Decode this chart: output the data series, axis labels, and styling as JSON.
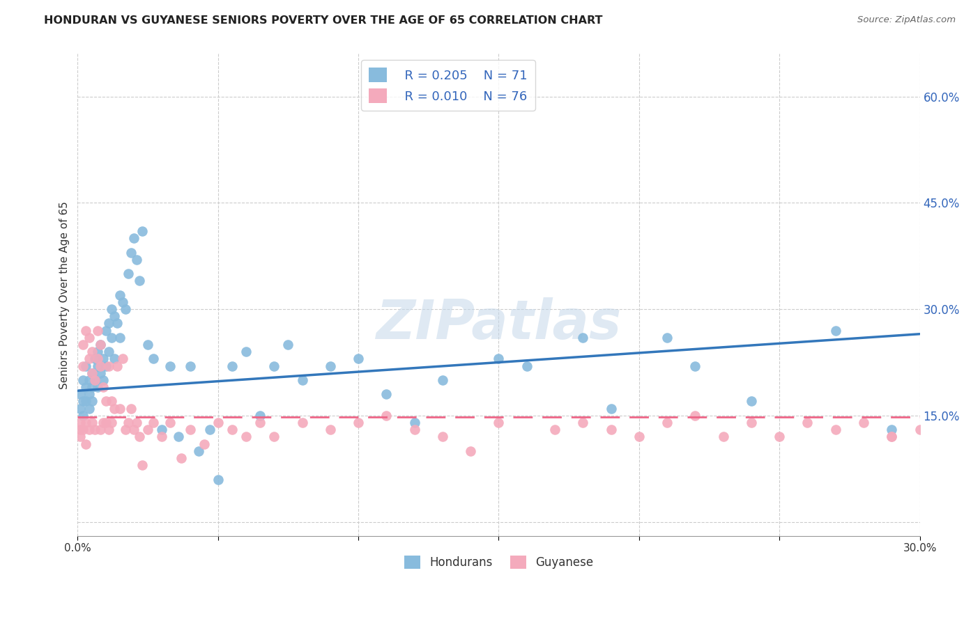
{
  "title": "HONDURAN VS GUYANESE SENIORS POVERTY OVER THE AGE OF 65 CORRELATION CHART",
  "source": "Source: ZipAtlas.com",
  "ylabel": "Seniors Poverty Over the Age of 65",
  "xlim": [
    0.0,
    0.3
  ],
  "ylim": [
    -0.02,
    0.66
  ],
  "yticks": [
    0.0,
    0.15,
    0.3,
    0.45,
    0.6
  ],
  "ytick_labels": [
    "",
    "15.0%",
    "30.0%",
    "45.0%",
    "60.0%"
  ],
  "xtick_vals": [
    0.0,
    0.05,
    0.1,
    0.15,
    0.2,
    0.25,
    0.3
  ],
  "xtick_labels": [
    "0.0%",
    "",
    "",
    "",
    "",
    "",
    "30.0%"
  ],
  "grid_color": "#cccccc",
  "background_color": "#ffffff",
  "honduran_color": "#88bbdd",
  "guyanese_color": "#f4aabc",
  "honduran_line_color": "#3377bb",
  "guyanese_line_color": "#ee6688",
  "watermark": "ZIPatlas",
  "legend_R_honduran": "R = 0.205",
  "legend_N_honduran": "N = 71",
  "legend_R_guyanese": "R = 0.010",
  "legend_N_guyanese": "N = 76",
  "honduran_x": [
    0.001,
    0.001,
    0.002,
    0.002,
    0.002,
    0.003,
    0.003,
    0.003,
    0.004,
    0.004,
    0.004,
    0.005,
    0.005,
    0.005,
    0.006,
    0.006,
    0.007,
    0.007,
    0.007,
    0.008,
    0.008,
    0.009,
    0.009,
    0.01,
    0.01,
    0.011,
    0.011,
    0.012,
    0.012,
    0.013,
    0.013,
    0.014,
    0.015,
    0.015,
    0.016,
    0.017,
    0.018,
    0.019,
    0.02,
    0.021,
    0.022,
    0.023,
    0.025,
    0.027,
    0.03,
    0.033,
    0.036,
    0.04,
    0.043,
    0.047,
    0.05,
    0.055,
    0.06,
    0.065,
    0.07,
    0.075,
    0.08,
    0.09,
    0.1,
    0.11,
    0.12,
    0.13,
    0.15,
    0.16,
    0.18,
    0.19,
    0.21,
    0.22,
    0.24,
    0.27,
    0.29
  ],
  "honduran_y": [
    0.18,
    0.16,
    0.17,
    0.15,
    0.2,
    0.19,
    0.17,
    0.22,
    0.18,
    0.2,
    0.16,
    0.21,
    0.19,
    0.17,
    0.23,
    0.2,
    0.24,
    0.22,
    0.19,
    0.25,
    0.21,
    0.23,
    0.2,
    0.27,
    0.22,
    0.28,
    0.24,
    0.3,
    0.26,
    0.29,
    0.23,
    0.28,
    0.32,
    0.26,
    0.31,
    0.3,
    0.35,
    0.38,
    0.4,
    0.37,
    0.34,
    0.41,
    0.25,
    0.23,
    0.13,
    0.22,
    0.12,
    0.22,
    0.1,
    0.13,
    0.06,
    0.22,
    0.24,
    0.15,
    0.22,
    0.25,
    0.2,
    0.22,
    0.23,
    0.18,
    0.14,
    0.2,
    0.23,
    0.22,
    0.26,
    0.16,
    0.26,
    0.22,
    0.17,
    0.27,
    0.13
  ],
  "guyanese_x": [
    0.001,
    0.001,
    0.001,
    0.002,
    0.002,
    0.002,
    0.003,
    0.003,
    0.003,
    0.004,
    0.004,
    0.004,
    0.005,
    0.005,
    0.005,
    0.006,
    0.006,
    0.007,
    0.007,
    0.008,
    0.008,
    0.008,
    0.009,
    0.009,
    0.01,
    0.01,
    0.011,
    0.011,
    0.012,
    0.012,
    0.013,
    0.014,
    0.015,
    0.016,
    0.017,
    0.018,
    0.019,
    0.02,
    0.021,
    0.022,
    0.023,
    0.025,
    0.027,
    0.03,
    0.033,
    0.037,
    0.04,
    0.045,
    0.05,
    0.055,
    0.06,
    0.065,
    0.07,
    0.08,
    0.09,
    0.1,
    0.11,
    0.12,
    0.13,
    0.14,
    0.15,
    0.17,
    0.18,
    0.19,
    0.2,
    0.21,
    0.22,
    0.23,
    0.24,
    0.25,
    0.26,
    0.27,
    0.28,
    0.29,
    0.29,
    0.3
  ],
  "guyanese_y": [
    0.13,
    0.14,
    0.12,
    0.25,
    0.22,
    0.13,
    0.27,
    0.14,
    0.11,
    0.26,
    0.23,
    0.13,
    0.24,
    0.21,
    0.14,
    0.13,
    0.2,
    0.27,
    0.23,
    0.25,
    0.22,
    0.13,
    0.19,
    0.14,
    0.17,
    0.14,
    0.22,
    0.13,
    0.17,
    0.14,
    0.16,
    0.22,
    0.16,
    0.23,
    0.13,
    0.14,
    0.16,
    0.13,
    0.14,
    0.12,
    0.08,
    0.13,
    0.14,
    0.12,
    0.14,
    0.09,
    0.13,
    0.11,
    0.14,
    0.13,
    0.12,
    0.14,
    0.12,
    0.14,
    0.13,
    0.14,
    0.15,
    0.13,
    0.12,
    0.1,
    0.14,
    0.13,
    0.14,
    0.13,
    0.12,
    0.14,
    0.15,
    0.12,
    0.14,
    0.12,
    0.14,
    0.13,
    0.14,
    0.12,
    0.12,
    0.13
  ],
  "honduran_line_y0": 0.185,
  "honduran_line_y1": 0.265,
  "guyanese_line_y0": 0.148,
  "guyanese_line_y1": 0.148
}
